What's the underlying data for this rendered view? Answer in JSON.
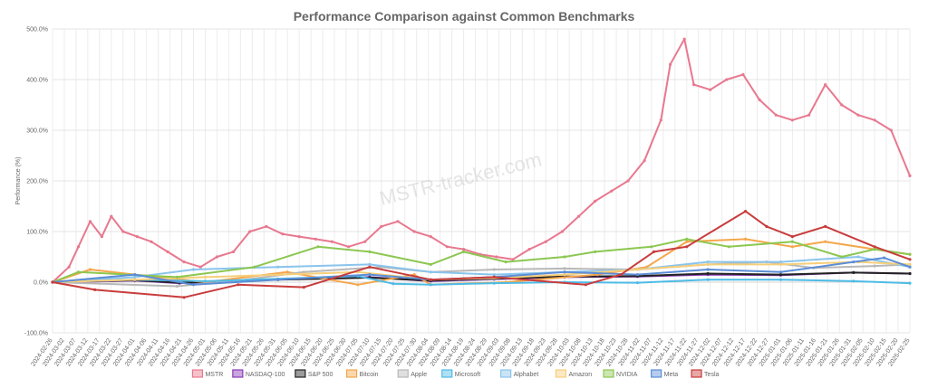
{
  "chart_data": {
    "type": "line",
    "title": "Performance Comparison against Common Benchmarks",
    "ylabel": "Performance (%)",
    "xlabel": "",
    "ylim": [
      -100,
      500
    ],
    "yticks": [
      -100,
      0,
      100,
      200,
      300,
      400,
      500
    ],
    "ytick_labels": [
      "-100.0%",
      "0.0%",
      "100.0%",
      "200.0%",
      "300.0%",
      "400.0%",
      "500.0%"
    ],
    "grid": true,
    "legend_position": "bottom",
    "watermark": "MSTR-tracker.com",
    "x_start": "2024-02-26",
    "x_end": "2025-02-25",
    "x_tick_labels": [
      "2024-02-26",
      "2024-03-02",
      "2024-03-07",
      "2024-03-12",
      "2024-03-17",
      "2024-03-22",
      "2024-03-27",
      "2024-04-01",
      "2024-04-06",
      "2024-04-11",
      "2024-04-16",
      "2024-04-21",
      "2024-04-26",
      "2024-05-01",
      "2024-05-06",
      "2024-05-11",
      "2024-05-16",
      "2024-05-21",
      "2024-05-26",
      "2024-05-31",
      "2024-06-05",
      "2024-06-10",
      "2024-06-15",
      "2024-06-20",
      "2024-06-25",
      "2024-06-30",
      "2024-07-05",
      "2024-07-10",
      "2024-07-15",
      "2024-07-20",
      "2024-07-25",
      "2024-07-30",
      "2024-08-04",
      "2024-08-09",
      "2024-08-14",
      "2024-08-19",
      "2024-08-24",
      "2024-08-29",
      "2024-09-03",
      "2024-09-08",
      "2024-09-13",
      "2024-09-18",
      "2024-09-23",
      "2024-09-28",
      "2024-10-03",
      "2024-10-08",
      "2024-10-13",
      "2024-10-18",
      "2024-10-23",
      "2024-10-28",
      "2024-11-02",
      "2024-11-07",
      "2024-11-12",
      "2024-11-17",
      "2024-11-22",
      "2024-11-27",
      "2024-12-02",
      "2024-12-07",
      "2024-12-12",
      "2024-12-17",
      "2024-12-22",
      "2024-12-27",
      "2025-01-01",
      "2025-01-06",
      "2025-01-11",
      "2025-01-16",
      "2025-01-21",
      "2025-01-26",
      "2025-01-31",
      "2025-02-05",
      "2025-02-10",
      "2025-02-15",
      "2025-02-20",
      "2025-02-25"
    ],
    "series": [
      {
        "name": "MSTR",
        "color": "#e8788f",
        "x": [
          "2024-02-26",
          "2024-03-04",
          "2024-03-08",
          "2024-03-13",
          "2024-03-18",
          "2024-03-22",
          "2024-03-27",
          "2024-04-02",
          "2024-04-08",
          "2024-04-15",
          "2024-04-22",
          "2024-04-29",
          "2024-05-06",
          "2024-05-13",
          "2024-05-20",
          "2024-05-27",
          "2024-06-03",
          "2024-06-10",
          "2024-06-17",
          "2024-06-24",
          "2024-07-01",
          "2024-07-08",
          "2024-07-15",
          "2024-07-22",
          "2024-07-29",
          "2024-08-05",
          "2024-08-12",
          "2024-08-19",
          "2024-08-26",
          "2024-09-02",
          "2024-09-09",
          "2024-09-16",
          "2024-09-23",
          "2024-09-30",
          "2024-10-07",
          "2024-10-14",
          "2024-10-21",
          "2024-10-28",
          "2024-11-04",
          "2024-11-11",
          "2024-11-15",
          "2024-11-21",
          "2024-11-25",
          "2024-12-02",
          "2024-12-09",
          "2024-12-16",
          "2024-12-23",
          "2024-12-30",
          "2025-01-06",
          "2025-01-13",
          "2025-01-20",
          "2025-01-27",
          "2025-02-03",
          "2025-02-10",
          "2025-02-17",
          "2025-02-25"
        ],
        "y": [
          0,
          30,
          70,
          120,
          90,
          130,
          100,
          90,
          80,
          60,
          40,
          30,
          50,
          60,
          100,
          110,
          95,
          90,
          85,
          80,
          70,
          80,
          110,
          120,
          100,
          90,
          70,
          65,
          55,
          50,
          45,
          65,
          80,
          100,
          130,
          160,
          180,
          200,
          240,
          320,
          430,
          480,
          390,
          380,
          400,
          410,
          360,
          330,
          320,
          330,
          390,
          350,
          330,
          320,
          300,
          210
        ]
      },
      {
        "name": "NASDAQ-100",
        "color": "#8a3ab9",
        "x": [
          "2024-02-26",
          "2024-04-01",
          "2024-04-20",
          "2024-06-01",
          "2024-07-10",
          "2024-08-05",
          "2024-09-01",
          "2024-10-01",
          "2024-11-01",
          "2024-12-01",
          "2025-01-01",
          "2025-02-01",
          "2025-02-25"
        ],
        "y": [
          0,
          3,
          -2,
          6,
          10,
          2,
          6,
          10,
          11,
          15,
          14,
          19,
          17
        ]
      },
      {
        "name": "S&P 500",
        "color": "#222222",
        "x": [
          "2024-02-26",
          "2024-04-01",
          "2024-04-20",
          "2024-06-01",
          "2024-07-10",
          "2024-08-05",
          "2024-09-01",
          "2024-10-01",
          "2024-11-01",
          "2024-12-01",
          "2025-01-01",
          "2025-02-01",
          "2025-02-25"
        ],
        "y": [
          0,
          4,
          -1,
          5,
          9,
          3,
          7,
          11,
          12,
          17,
          15,
          19,
          17
        ]
      },
      {
        "name": "Bitcoin",
        "color": "#f5a64a",
        "x": [
          "2024-02-26",
          "2024-03-13",
          "2024-04-01",
          "2024-05-01",
          "2024-06-05",
          "2024-07-05",
          "2024-07-29",
          "2024-08-05",
          "2024-09-06",
          "2024-10-15",
          "2024-11-05",
          "2024-11-22",
          "2024-12-17",
          "2025-01-06",
          "2025-01-20",
          "2025-02-10",
          "2025-02-25"
        ],
        "y": [
          0,
          25,
          15,
          0,
          20,
          -5,
          15,
          -5,
          0,
          15,
          30,
          80,
          85,
          70,
          80,
          65,
          55
        ]
      },
      {
        "name": "Apple",
        "color": "#b8b8b8",
        "x": [
          "2024-02-26",
          "2024-04-19",
          "2024-05-15",
          "2024-06-12",
          "2024-07-15",
          "2024-08-05",
          "2024-09-01",
          "2024-10-01",
          "2024-11-01",
          "2024-12-01",
          "2024-12-26",
          "2025-01-15",
          "2025-02-10",
          "2025-02-25"
        ],
        "y": [
          0,
          -8,
          3,
          20,
          30,
          20,
          25,
          27,
          25,
          35,
          40,
          28,
          32,
          35
        ]
      },
      {
        "name": "Microsoft",
        "color": "#4dbbe6",
        "x": [
          "2024-02-26",
          "2024-04-01",
          "2024-05-01",
          "2024-07-05",
          "2024-07-20",
          "2024-08-05",
          "2024-09-01",
          "2024-10-01",
          "2024-11-01",
          "2024-12-01",
          "2025-01-01",
          "2025-02-01",
          "2025-02-25"
        ],
        "y": [
          0,
          5,
          2,
          12,
          -3,
          -5,
          -2,
          0,
          -1,
          5,
          5,
          2,
          -2
        ]
      },
      {
        "name": "Alphabet",
        "color": "#8ac4ec",
        "x": [
          "2024-02-26",
          "2024-04-01",
          "2024-04-26",
          "2024-06-01",
          "2024-07-10",
          "2024-08-05",
          "2024-09-01",
          "2024-10-01",
          "2024-11-01",
          "2024-12-01",
          "2025-01-01",
          "2025-02-03",
          "2025-02-25"
        ],
        "y": [
          0,
          10,
          25,
          30,
          35,
          20,
          15,
          20,
          25,
          40,
          40,
          50,
          30
        ]
      },
      {
        "name": "Amazon",
        "color": "#f6cf7a",
        "x": [
          "2024-02-26",
          "2024-04-01",
          "2024-05-01",
          "2024-07-05",
          "2024-08-05",
          "2024-09-01",
          "2024-10-01",
          "2024-11-01",
          "2024-12-01",
          "2025-01-01",
          "2025-02-03",
          "2025-02-25"
        ],
        "y": [
          0,
          5,
          10,
          20,
          5,
          8,
          15,
          25,
          35,
          35,
          40,
          35
        ]
      },
      {
        "name": "NVIDIA",
        "color": "#8cc751",
        "x": [
          "2024-02-26",
          "2024-03-08",
          "2024-04-19",
          "2024-05-22",
          "2024-06-18",
          "2024-07-10",
          "2024-08-05",
          "2024-08-19",
          "2024-09-06",
          "2024-10-01",
          "2024-10-14",
          "2024-11-07",
          "2024-11-22",
          "2024-12-10",
          "2025-01-06",
          "2025-01-27",
          "2025-02-10",
          "2025-02-25"
        ],
        "y": [
          0,
          20,
          10,
          30,
          70,
          60,
          35,
          60,
          40,
          50,
          60,
          70,
          85,
          70,
          80,
          50,
          65,
          55
        ]
      },
      {
        "name": "Meta",
        "color": "#5b8dd6",
        "x": [
          "2024-02-26",
          "2024-04-01",
          "2024-04-26",
          "2024-06-01",
          "2024-07-10",
          "2024-08-05",
          "2024-09-01",
          "2024-10-01",
          "2024-11-01",
          "2024-12-01",
          "2025-01-01",
          "2025-02-01",
          "2025-02-14",
          "2025-02-25"
        ],
        "y": [
          0,
          15,
          -5,
          5,
          15,
          5,
          10,
          20,
          15,
          25,
          20,
          40,
          48,
          30
        ]
      },
      {
        "name": "Tesla",
        "color": "#c93c3c",
        "x": [
          "2024-02-26",
          "2024-03-15",
          "2024-04-22",
          "2024-05-15",
          "2024-06-12",
          "2024-07-10",
          "2024-08-05",
          "2024-09-01",
          "2024-10-10",
          "2024-10-25",
          "2024-11-08",
          "2024-11-22",
          "2024-12-17",
          "2024-12-26",
          "2025-01-06",
          "2025-01-20",
          "2025-02-10",
          "2025-02-25"
        ],
        "y": [
          0,
          -15,
          -30,
          -5,
          -10,
          30,
          5,
          10,
          -5,
          15,
          60,
          70,
          140,
          110,
          90,
          110,
          70,
          45
        ]
      }
    ]
  }
}
